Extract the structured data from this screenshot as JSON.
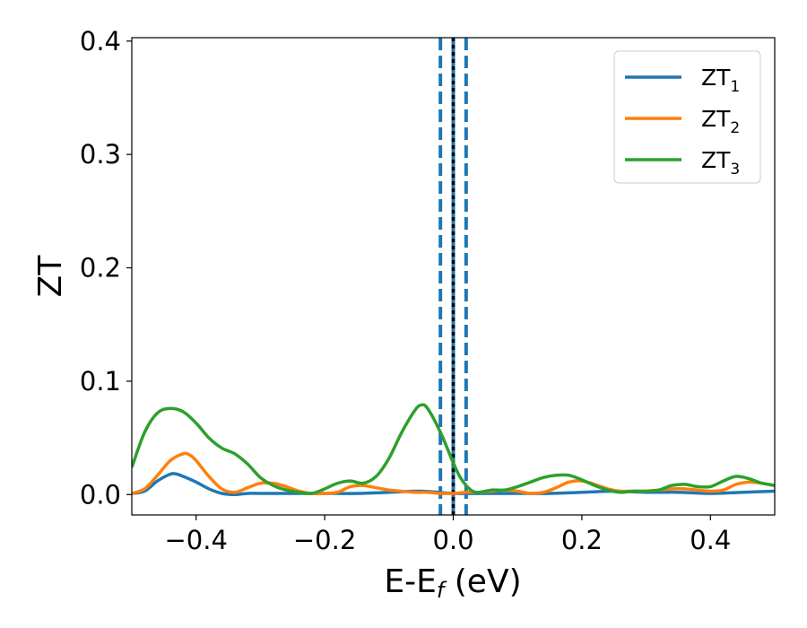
{
  "chart_data": {
    "type": "line",
    "xlabel": "E-E",
    "xlabel_sub": "f",
    "xlabel_unit": " (eV)",
    "ylabel": "ZT",
    "xlim": [
      -0.5,
      0.5
    ],
    "ylim": [
      -0.018,
      0.403
    ],
    "x_ticks": [
      -0.4,
      -0.2,
      0.0,
      0.2,
      0.4
    ],
    "x_tick_labels": [
      "−0.4",
      "−0.2",
      "0.0",
      "0.2",
      "0.4"
    ],
    "y_ticks": [
      0.0,
      0.1,
      0.2,
      0.3,
      0.4
    ],
    "y_tick_labels": [
      "0.0",
      "0.1",
      "0.2",
      "0.3",
      "0.4"
    ],
    "grid": false,
    "legend_position": "top-right",
    "vertical_lines": [
      {
        "x": -0.02,
        "style": "dashed",
        "color": "#1f77b4"
      },
      {
        "x": 0.02,
        "style": "dashed",
        "color": "#1f77b4"
      },
      {
        "x": 0.0,
        "style": "solid",
        "color": "#1f77b4"
      },
      {
        "x": 0.0,
        "style": "dotted",
        "color": "#000000"
      }
    ],
    "series": [
      {
        "name": "ZT",
        "name_sub": "1",
        "color": "#1f77b4",
        "x": [
          -0.5,
          -0.48,
          -0.46,
          -0.44,
          -0.43,
          -0.42,
          -0.4,
          -0.38,
          -0.36,
          -0.34,
          -0.32,
          -0.3,
          -0.25,
          -0.2,
          -0.15,
          -0.1,
          -0.05,
          0.0,
          0.05,
          0.1,
          0.15,
          0.2,
          0.25,
          0.3,
          0.35,
          0.4,
          0.45,
          0.5
        ],
        "y": [
          0.001,
          0.003,
          0.012,
          0.018,
          0.018,
          0.016,
          0.011,
          0.005,
          0.001,
          0.0,
          0.001,
          0.001,
          0.001,
          0.001,
          0.001,
          0.002,
          0.003,
          0.001,
          0.001,
          0.001,
          0.001,
          0.002,
          0.003,
          0.002,
          0.002,
          0.001,
          0.002,
          0.003
        ]
      },
      {
        "name": "ZT",
        "name_sub": "2",
        "color": "#ff7f0e",
        "x": [
          -0.5,
          -0.48,
          -0.46,
          -0.44,
          -0.42,
          -0.41,
          -0.4,
          -0.38,
          -0.36,
          -0.34,
          -0.32,
          -0.3,
          -0.28,
          -0.26,
          -0.24,
          -0.22,
          -0.2,
          -0.18,
          -0.16,
          -0.14,
          -0.12,
          -0.1,
          -0.08,
          -0.06,
          -0.04,
          -0.02,
          0.0,
          0.02,
          0.04,
          0.06,
          0.08,
          0.1,
          0.12,
          0.14,
          0.16,
          0.18,
          0.2,
          0.22,
          0.24,
          0.26,
          0.28,
          0.3,
          0.32,
          0.34,
          0.36,
          0.38,
          0.4,
          0.42,
          0.44,
          0.46,
          0.48,
          0.5
        ],
        "y": [
          0.001,
          0.005,
          0.017,
          0.03,
          0.036,
          0.035,
          0.03,
          0.016,
          0.005,
          0.002,
          0.006,
          0.01,
          0.01,
          0.007,
          0.003,
          0.001,
          0.001,
          0.002,
          0.007,
          0.008,
          0.006,
          0.004,
          0.003,
          0.002,
          0.002,
          0.001,
          0.001,
          0.002,
          0.002,
          0.003,
          0.004,
          0.003,
          0.001,
          0.002,
          0.006,
          0.011,
          0.012,
          0.009,
          0.005,
          0.003,
          0.003,
          0.003,
          0.004,
          0.005,
          0.005,
          0.004,
          0.003,
          0.004,
          0.009,
          0.011,
          0.01,
          0.008
        ]
      },
      {
        "name": "ZT",
        "name_sub": "3",
        "color": "#2ca02c",
        "x": [
          -0.5,
          -0.48,
          -0.46,
          -0.44,
          -0.42,
          -0.4,
          -0.38,
          -0.36,
          -0.34,
          -0.32,
          -0.3,
          -0.28,
          -0.26,
          -0.24,
          -0.22,
          -0.2,
          -0.18,
          -0.16,
          -0.14,
          -0.12,
          -0.1,
          -0.08,
          -0.06,
          -0.05,
          -0.04,
          -0.02,
          0.0,
          0.01,
          0.02,
          0.03,
          0.04,
          0.06,
          0.08,
          0.1,
          0.12,
          0.14,
          0.16,
          0.18,
          0.2,
          0.22,
          0.24,
          0.26,
          0.28,
          0.3,
          0.32,
          0.34,
          0.36,
          0.38,
          0.4,
          0.42,
          0.44,
          0.46,
          0.48,
          0.5
        ],
        "y": [
          0.024,
          0.055,
          0.072,
          0.076,
          0.073,
          0.063,
          0.05,
          0.041,
          0.036,
          0.027,
          0.015,
          0.008,
          0.004,
          0.002,
          0.001,
          0.005,
          0.01,
          0.012,
          0.01,
          0.016,
          0.032,
          0.055,
          0.074,
          0.079,
          0.076,
          0.055,
          0.028,
          0.016,
          0.008,
          0.003,
          0.002,
          0.004,
          0.004,
          0.007,
          0.011,
          0.015,
          0.017,
          0.017,
          0.013,
          0.008,
          0.004,
          0.002,
          0.003,
          0.003,
          0.004,
          0.008,
          0.009,
          0.007,
          0.007,
          0.012,
          0.016,
          0.014,
          0.01,
          0.008
        ]
      }
    ]
  }
}
